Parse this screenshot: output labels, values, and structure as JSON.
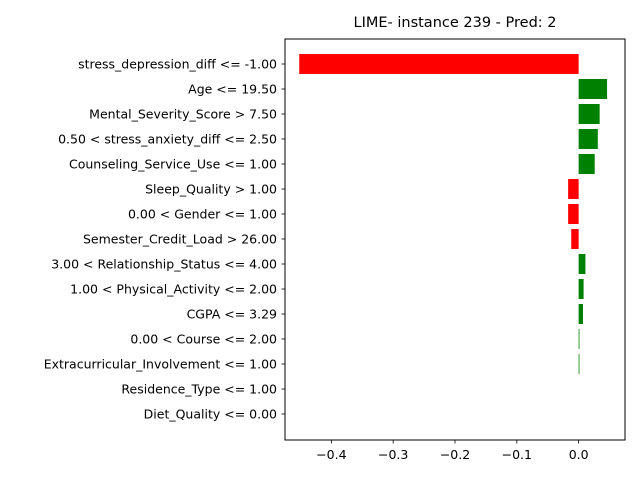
{
  "chart_data": {
    "type": "bar",
    "orientation": "horizontal",
    "title": "LIME- instance 239 - Pred: 2",
    "xlabel": "",
    "ylabel": "",
    "xlim": [
      -0.475,
      0.075
    ],
    "xticks": [
      -0.4,
      -0.3,
      -0.2,
      -0.1,
      0.0
    ],
    "xtick_labels": [
      "−0.4",
      "−0.3",
      "−0.2",
      "−0.1",
      "0.0"
    ],
    "grid": false,
    "legend": "none",
    "colors": {
      "positive": "#008000",
      "negative": "#ff0000"
    },
    "categories": [
      "stress_depression_diff <= -1.00",
      "Age <= 19.50",
      "Mental_Severity_Score > 7.50",
      "0.50 < stress_anxiety_diff <= 2.50",
      "Counseling_Service_Use <= 1.00",
      "Sleep_Quality > 1.00",
      "0.00 < Gender <= 1.00",
      "Semester_Credit_Load > 26.00",
      "3.00 < Relationship_Status <= 4.00",
      "1.00 < Physical_Activity <= 2.00",
      "CGPA <= 3.29",
      "0.00 < Course <= 2.00",
      "Extracurricular_Involvement <= 1.00",
      "Residence_Type <= 1.00",
      "Diet_Quality <= 0.00"
    ],
    "values": [
      -0.452,
      0.046,
      0.034,
      0.031,
      0.026,
      -0.017,
      -0.017,
      -0.012,
      0.011,
      0.008,
      0.007,
      0.001,
      0.001,
      0.0,
      0.0
    ]
  }
}
